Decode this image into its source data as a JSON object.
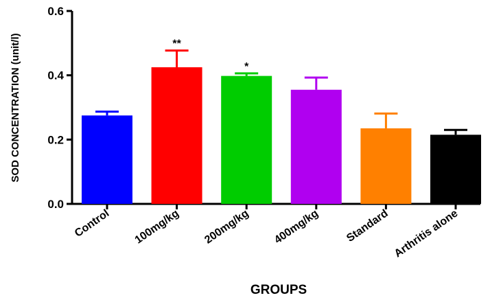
{
  "chart_data": {
    "type": "bar",
    "title": "",
    "xlabel": "GROUPS",
    "ylabel": "SOD CONCENTRATION (unit/l)",
    "ylim": [
      0,
      0.6
    ],
    "yticks": [
      "0.0",
      "0.2",
      "0.4",
      "0.6"
    ],
    "grid": false,
    "categories": [
      "Control",
      "100mg/kg",
      "200mg/kg",
      "400mg/kg",
      "Standard",
      "Arthritis alone"
    ],
    "values": [
      0.275,
      0.425,
      0.398,
      0.355,
      0.235,
      0.215
    ],
    "errors": [
      0.012,
      0.052,
      0.008,
      0.038,
      0.046,
      0.015
    ],
    "annotations": [
      "",
      "**",
      "*",
      "",
      "",
      ""
    ],
    "colors": [
      "#0000ff",
      "#ff0000",
      "#00cc00",
      "#b000f0",
      "#ff8000",
      "#000000"
    ]
  }
}
